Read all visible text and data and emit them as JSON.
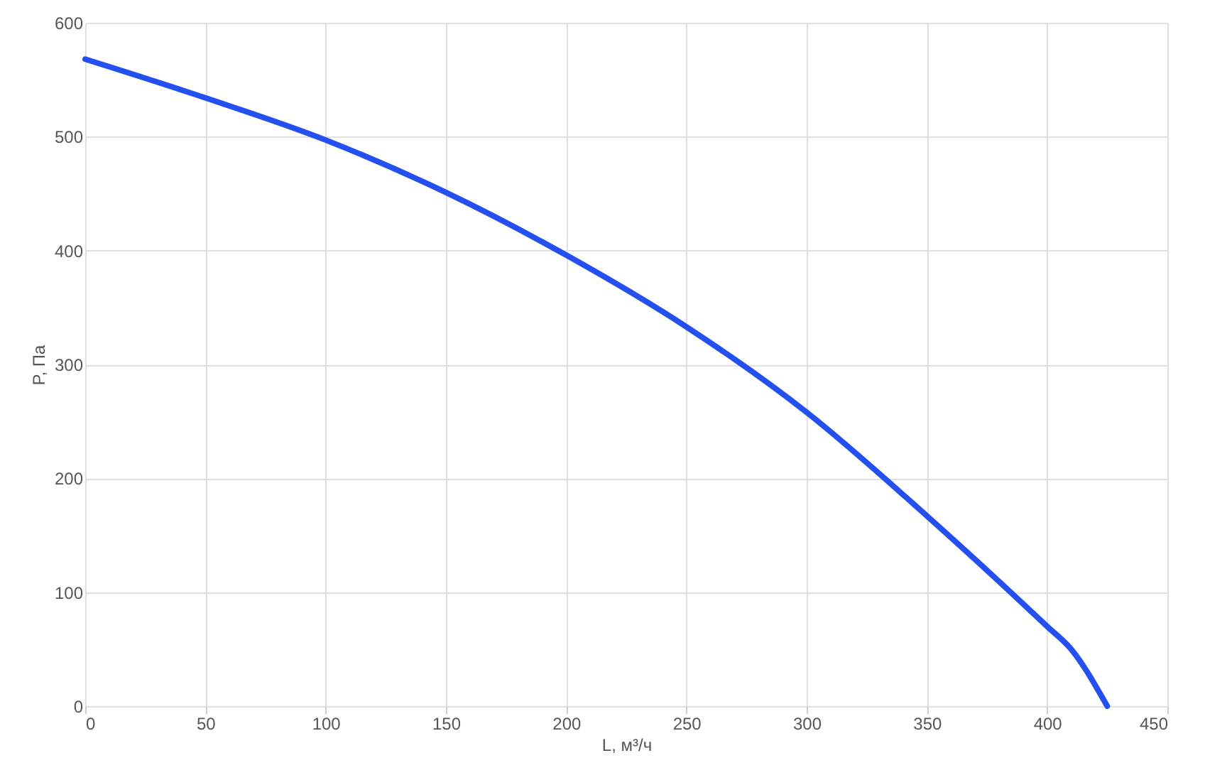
{
  "chart_data": {
    "type": "line",
    "xlabel": "L, м³/ч",
    "ylabel": "P, Па",
    "x": [
      0,
      50,
      100,
      150,
      200,
      250,
      300,
      350,
      400,
      410,
      425
    ],
    "series": [
      {
        "color": "#2450f0",
        "values": [
          568,
          534,
          497,
          451,
          396,
          333,
          258,
          167,
          70,
          50,
          0
        ]
      }
    ],
    "xlim": [
      0,
      450
    ],
    "xticks": [
      0,
      50,
      100,
      150,
      200,
      250,
      300,
      350,
      400,
      450
    ],
    "ylim": [
      0,
      600
    ],
    "yticks": [
      0,
      100,
      200,
      300,
      400,
      500,
      600
    ],
    "grid": true,
    "marker": "none",
    "line_style": "solid"
  }
}
